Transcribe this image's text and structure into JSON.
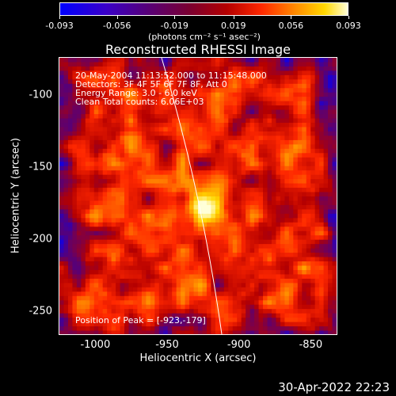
{
  "chart_data": {
    "type": "heatmap",
    "title": "Reconstructed RHESSI Image",
    "xlabel": "Heliocentric X (arcsec)",
    "ylabel": "Heliocentric Y (arcsec)",
    "xlim": [
      -1025,
      -832
    ],
    "ylim": [
      -266,
      -74
    ],
    "xticks": [
      "-1000",
      "-950",
      "-900",
      "-850"
    ],
    "yticks": [
      "-100",
      "-150",
      "-200",
      "-250"
    ],
    "xtick_values": [
      -1000,
      -950,
      -900,
      -850
    ],
    "ytick_values": [
      -100,
      -150,
      -200,
      -250
    ],
    "colorbar": {
      "ticks": [
        "-0.093",
        "-0.056",
        "-0.019",
        "0.019",
        "0.056",
        "0.093"
      ],
      "tick_values": [
        -0.093,
        -0.056,
        -0.019,
        0.019,
        0.056,
        0.093
      ],
      "range": [
        -0.093,
        0.093
      ],
      "unit": "(photons cm⁻² s⁻¹ asec⁻²)",
      "colormap": [
        "#0000ff",
        "#55007a",
        "#b50000",
        "#ff2800",
        "#ff8c00",
        "#ffd700",
        "#ffffd8"
      ]
    },
    "annotations": {
      "time": "20-May-2004 11:13:52.000 to 11:15:48.000",
      "detectors": "Detectors: 3F 4F 5F 6F 7F 8F, Att 0",
      "energy": "Energy Range: 3.0 - 6.0 keV",
      "clean": "Clean     Total counts: 6.06E+03",
      "peak": "Position of Peak = [-923,-179]"
    },
    "peak": {
      "x": -923,
      "y": -179,
      "value": 0.093
    }
  },
  "footer_date": "30-Apr-2022 22:23"
}
